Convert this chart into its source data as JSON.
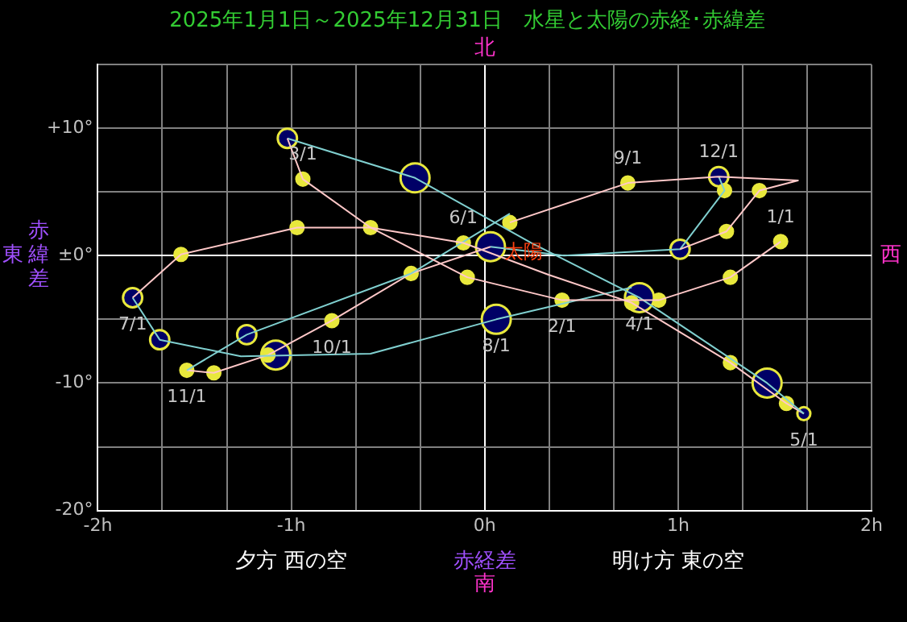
{
  "chart_data": {
    "type": "bubble",
    "title": "2025年1月1日～2025年12月31日　水星と太陽の赤経･赤緯差",
    "xlabel": "赤経差",
    "ylabel": "赤緯差",
    "xlim": [
      -2,
      2
    ],
    "ylim": [
      -20,
      15
    ],
    "xticks": [
      {
        "value": -2,
        "label": "-2h"
      },
      {
        "value": -1.667,
        "label": null
      },
      {
        "value": -1.333,
        "label": null
      },
      {
        "value": -1,
        "label": "-1h"
      },
      {
        "value": -0.667,
        "label": null
      },
      {
        "value": -0.333,
        "label": null
      },
      {
        "value": 0,
        "label": "0h"
      },
      {
        "value": 0.333,
        "label": null
      },
      {
        "value": 0.667,
        "label": null
      },
      {
        "value": 1,
        "label": "1h"
      },
      {
        "value": 1.333,
        "label": null
      },
      {
        "value": 1.667,
        "label": null
      },
      {
        "value": 2,
        "label": "2h"
      }
    ],
    "yticks": [
      {
        "value": -20,
        "label": "-20°"
      },
      {
        "value": -15,
        "label": null
      },
      {
        "value": -10,
        "label": "-10°"
      },
      {
        "value": -5,
        "label": null
      },
      {
        "value": 0,
        "label": "±0°"
      },
      {
        "value": 5,
        "label": null
      },
      {
        "value": 10,
        "label": "+10°"
      },
      {
        "value": 15,
        "label": null
      }
    ],
    "grid": true,
    "legend": false,
    "series": [
      {
        "type": "line",
        "color": "#ffc8c8",
        "marker": "none",
        "x": [
          1.53,
          1.27,
          0.9,
          0.4,
          -0.09,
          -0.59,
          -0.94,
          -1.02
        ],
        "values": [
          1.1,
          -1.7,
          -3.5,
          -3.5,
          -1.7,
          2.2,
          6.0,
          9.2
        ]
      },
      {
        "type": "line",
        "color": "#80d0d0",
        "marker": "none",
        "x": [
          -1.02,
          -0.36,
          0.24,
          0.8,
          1.46,
          1.65
        ],
        "values": [
          9.2,
          6.1,
          1.0,
          -3.3,
          -10.0,
          -12.4
        ]
      },
      {
        "type": "line",
        "color": "#ffc8c8",
        "marker": "none",
        "x": [
          1.65,
          1.56,
          1.27,
          0.76,
          0.33,
          -0.11,
          -0.59,
          -0.97,
          -1.57,
          -1.82
        ],
        "values": [
          -12.4,
          -11.6,
          -8.4,
          -3.7,
          -1.5,
          1.0,
          2.2,
          2.2,
          0.1,
          -3.3
        ]
      },
      {
        "type": "line",
        "color": "#80d0d0",
        "marker": "none",
        "x": [
          -1.82,
          -1.68,
          -1.26,
          -0.59,
          0.06,
          0.76
        ],
        "values": [
          -3.3,
          -6.6,
          -7.9,
          -7.7,
          -5.0,
          -2.5
        ]
      },
      {
        "type": "line",
        "color": "#ffc8c8",
        "marker": "none",
        "x": [
          0.13,
          0.74,
          1.21,
          1.62,
          1.42,
          1.25,
          1.01
        ],
        "values": [
          2.6,
          5.7,
          6.2,
          5.9,
          5.1,
          1.9,
          0.5
        ]
      },
      {
        "type": "line",
        "color": "#80d0d0",
        "marker": "none",
        "x": [
          0.13,
          -0.38,
          -1.23,
          -1.54
        ],
        "values": [
          3.3,
          -1.4,
          -6.2,
          -9.0
        ]
      },
      {
        "type": "line",
        "color": "#ffc8c8",
        "marker": "none",
        "x": [
          -1.54,
          -1.4,
          -1.12,
          -0.79,
          -0.38,
          0.03
        ],
        "values": [
          -9.0,
          -9.2,
          -7.8,
          -5.1,
          -1.4,
          0.7
        ]
      },
      {
        "type": "line",
        "color": "#80d0d0",
        "marker": "none",
        "x": [
          0.03,
          0.41,
          1.01,
          1.24,
          1.21
        ],
        "values": [
          0.7,
          0.0,
          0.5,
          5.1,
          6.2
        ]
      },
      {
        "color": "#e8e83c",
        "x": [
          1.53,
          1.27,
          0.9,
          0.4,
          -0.09,
          -0.59,
          -0.94,
          -1.02,
          -0.36,
          0.8,
          1.46,
          1.56,
          1.65,
          1.27,
          0.76,
          0.13,
          -0.11,
          -0.97,
          -1.57,
          -1.82,
          -1.68,
          -1.23,
          -1.08,
          -1.12,
          -1.54,
          -1.4,
          -0.79,
          -0.38,
          0.06,
          0.03,
          0.74,
          1.21,
          1.24,
          1.42,
          1.25,
          1.01
        ],
        "values": [
          1.1,
          -1.7,
          -3.5,
          -3.5,
          -1.7,
          2.2,
          6.0,
          9.2,
          6.1,
          -3.3,
          -10.0,
          -11.6,
          -12.4,
          -8.4,
          -3.7,
          2.6,
          1.0,
          2.2,
          0.1,
          -3.3,
          -6.6,
          -6.2,
          -7.8,
          -7.8,
          -9.0,
          -9.2,
          -5.1,
          -1.4,
          -5.0,
          0.7,
          5.7,
          6.2,
          5.1,
          5.1,
          1.9,
          0.5
        ],
        "sizes": [
          0.2,
          0.2,
          0.2,
          0.2,
          0.2,
          0.2,
          0.2,
          0.44,
          1,
          1,
          1,
          0.2,
          0.2,
          0.2,
          0.2,
          0.2,
          0.2,
          0.2,
          0.2,
          0.44,
          0.44,
          0.44,
          1,
          0.2,
          0.2,
          0.2,
          0.2,
          0.2,
          1,
          1,
          0.2,
          0.44,
          0.2,
          0.2,
          0.2,
          0.44
        ],
        "colors": [
          "#e8e83c",
          "#e8e83c",
          "#e8e83c",
          "#e8e83c",
          "#e8e83c",
          "#e8e83c",
          "#e8e83c",
          "#000066",
          "#000066",
          "#000066",
          "#000066",
          "#e8e83c",
          "#000066",
          "#e8e83c",
          "#e8e83c",
          "#e8e83c",
          "#e8e83c",
          "#e8e83c",
          "#e8e83c",
          "#000066",
          "#000066",
          "#000066",
          "#000066",
          "#e8e83c",
          "#e8e83c",
          "#e8e83c",
          "#e8e83c",
          "#e8e83c",
          "#000066",
          "#000066",
          "#e8e83c",
          "#000066",
          "#e8e83c",
          "#e8e83c",
          "#e8e83c",
          "#000066"
        ]
      }
    ],
    "annotations": [
      "北",
      "南",
      "東",
      "西",
      "夕方 西の空",
      "明け方 東の空",
      {
        "text": "太陽",
        "x": 0,
        "y": 0
      },
      {
        "text": "1/1",
        "x": 1.53,
        "y": 1.1
      },
      {
        "text": "2/1",
        "x": 0.4,
        "y": -3.5
      },
      {
        "text": "3/1",
        "x": -0.94,
        "y": 6.0
      },
      {
        "text": "4/1",
        "x": 0.8,
        "y": -3.3
      },
      {
        "text": "5/1",
        "x": 1.65,
        "y": -12.4
      },
      {
        "text": "6/1",
        "x": -0.11,
        "y": 1.0
      },
      {
        "text": "7/1",
        "x": -1.82,
        "y": -3.3
      },
      {
        "text": "8/1",
        "x": 0.06,
        "y": -5.0
      },
      {
        "text": "9/1",
        "x": 0.74,
        "y": 5.7
      },
      {
        "text": "10/1",
        "x": -0.79,
        "y": -5.1
      },
      {
        "text": "11/1",
        "x": -1.54,
        "y": -9.0
      },
      {
        "text": "12/1",
        "x": 1.21,
        "y": 6.2
      }
    ]
  }
}
